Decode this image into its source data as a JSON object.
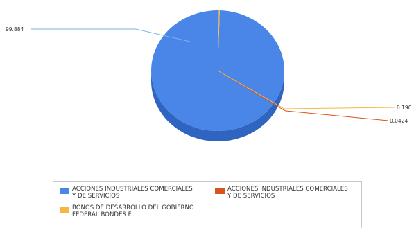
{
  "chart_data": {
    "type": "pie",
    "slices": [
      {
        "label": "ACCIONES INDUSTRIALES COMERCIALES\nY DE SERVICIOS",
        "value": 99.884,
        "value_label": "99.884",
        "color": "#4a86e8"
      },
      {
        "label": "ACCIONES INDUSTRIALES COMERCIALES\nY DE SERVICIOS",
        "value": 0.0424,
        "value_label": "0.0424",
        "color": "#d9531e"
      },
      {
        "label": "BONOS DE DESARROLLO DEL GOBIERNO\nFEDERAL BONDES F",
        "value": 0.19,
        "value_label": "0.190",
        "color": "#f6b642"
      }
    ],
    "legend_position": "bottom",
    "style": "3d"
  }
}
